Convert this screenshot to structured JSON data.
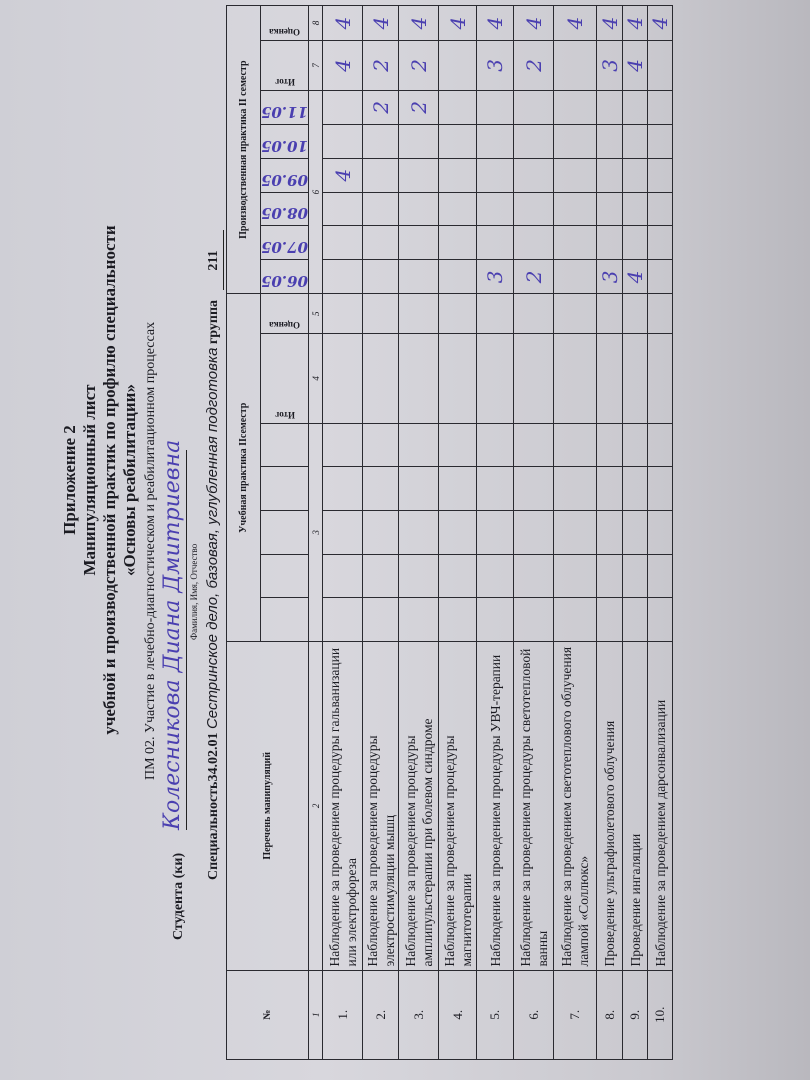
{
  "header": {
    "appendix": "Приложение 2",
    "title": "Манипуляционный лист",
    "subtitle": "учебной и производственной практик по профилю специальности",
    "course": "«Основы реабилитации»",
    "module": "ПМ 02. Участие в лечебно-диагностическом и реабилитационном процессах",
    "student_label": "Студента (ки)",
    "student_name": "Колесникова Диана Дмитриевна",
    "fio_caption": "Фамилия, Имя, Отчество",
    "specialty_label": "Специальность34.02.01",
    "specialty_value": "Сестринское дело, базовая, углубленная подготовка",
    "group_label": "группа",
    "group_value": "211"
  },
  "table": {
    "col_no": "№",
    "col_list": "Перечень манипуляций",
    "section_edu": "Учебная практика IIсеместр",
    "section_prod": "Производственная  практика II семестр",
    "col_total": "Итог",
    "col_grade": "Оценка",
    "col_numbers": [
      "1",
      "2",
      "3",
      "4",
      "5",
      "6",
      "7",
      "8"
    ],
    "dates": [
      "06.05",
      "07.05",
      "08.05",
      "09.05",
      "10.05",
      "11.05"
    ],
    "rows": [
      {
        "no": "1.",
        "name": "Наблюдение за проведением процедуры гальванизации или электрофореза",
        "days": [
          "",
          "",
          "",
          "4",
          "",
          ""
        ],
        "total": "4",
        "grade": "4"
      },
      {
        "no": "2.",
        "name": "Наблюдение за проведением процедуры электростимуляции мышц",
        "days": [
          "",
          "",
          "",
          "",
          "",
          "2"
        ],
        "total": "2",
        "grade": "4"
      },
      {
        "no": "3.",
        "name": "Наблюдение за проведением процедуры амплипульстерапии при болевом синдроме",
        "days": [
          "",
          "",
          "",
          "",
          "",
          "2"
        ],
        "total": "2",
        "grade": "4"
      },
      {
        "no": "4.",
        "name": "Наблюдение за проведением процедуры магнитотерапии",
        "days": [
          "",
          "",
          "",
          "",
          "",
          ""
        ],
        "total": "",
        "grade": "4"
      },
      {
        "no": "5.",
        "name": "Наблюдение за проведением процедуры УВЧ-терапии",
        "days": [
          "3",
          "",
          "",
          "",
          "",
          ""
        ],
        "total": "3",
        "grade": "4"
      },
      {
        "no": "6.",
        "name": "Наблюдение за проведением процедуры светотепловой ванны",
        "days": [
          "2",
          "",
          "",
          "",
          "",
          ""
        ],
        "total": "2",
        "grade": "4"
      },
      {
        "no": "7.",
        "name": "Наблюдение за проведением светотеплового облучения лампой «Соллюкс»",
        "days": [
          "",
          "",
          "",
          "",
          "",
          ""
        ],
        "total": "",
        "grade": "4"
      },
      {
        "no": "8.",
        "name": "Проведение ультрафиолетового облучения",
        "days": [
          "3",
          "",
          "",
          "",
          "",
          ""
        ],
        "total": "3",
        "grade": "4"
      },
      {
        "no": "9.",
        "name": "Проведение ингаляции",
        "days": [
          "4",
          "",
          "",
          "",
          "",
          ""
        ],
        "total": "4",
        "grade": "4"
      },
      {
        "no": "10.",
        "name": "Наблюдение за проведением дарсонвализации",
        "days": [
          "",
          "",
          "",
          "",
          "",
          ""
        ],
        "total": "",
        "grade": "4"
      }
    ]
  },
  "colors": {
    "ink": "#4a3fb0",
    "paper": "#d2d1d7"
  }
}
